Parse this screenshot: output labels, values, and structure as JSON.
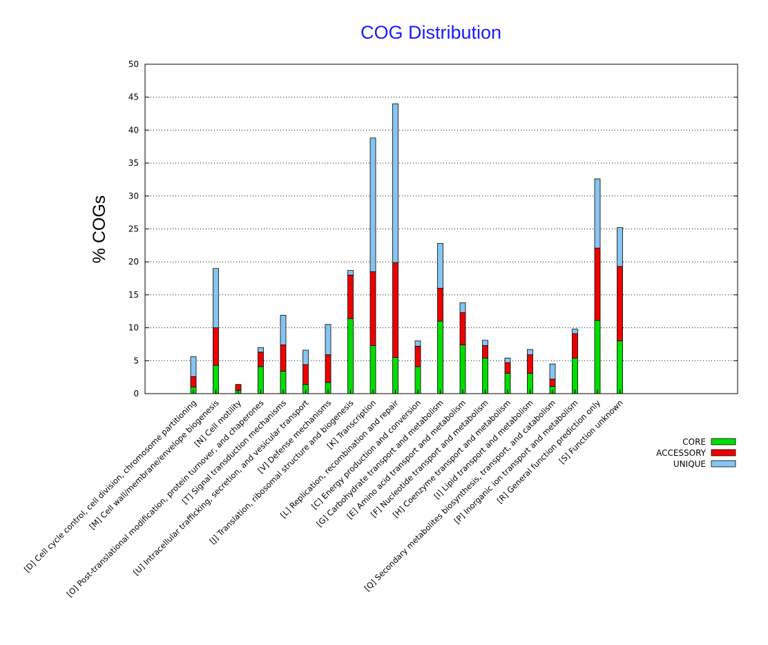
{
  "chart_data": {
    "type": "bar",
    "stacked": true,
    "title": "COG Distribution",
    "xlabel": "",
    "ylabel": "% COGs",
    "ylim": [
      0,
      50
    ],
    "yticks": [
      0,
      5,
      10,
      15,
      20,
      25,
      30,
      35,
      40,
      45,
      50
    ],
    "grid": true,
    "legend_position": "right",
    "categories": [
      "[D] Cell cycle control, cell division, chromosome partitioning",
      "[M] Cell wall/membrane/envelope biogenesis",
      "[N] Cell motility",
      "[O] Post-translational modification, protein turnover, and chaperones",
      "[T] Signal transduction mechanisms",
      "[U] Intracellular trafficking, secretion, and vesicular transport",
      "[V] Defense mechanisms",
      "[J] Translation, ribosomal structure and biogenesis",
      "[K] Transcription",
      "[L] Replication, recombination and repair",
      "[C] Energy production and conversion",
      "[G] Carbohydrate transport and metabolism",
      "[E] Amino acid transport and metabolism",
      "[F] Nucleotide transport and metabolism",
      "[H] Coenzyme transport and metabolism",
      "[I] Lipid transport and metabolism",
      "[Q] Secondary metabolites biosynthesis, transport, and catabolism",
      "[P] Inorganic ion transport and metabolism",
      "[R] General function prediction only",
      "[S] Function unknown"
    ],
    "series": [
      {
        "name": "CORE",
        "color": "#00dd00",
        "values": [
          1.0,
          4.3,
          0.5,
          4.1,
          3.4,
          1.4,
          1.7,
          11.4,
          7.3,
          5.5,
          4.1,
          11.0,
          7.4,
          5.4,
          3.1,
          3.1,
          1.1,
          5.4,
          11.1,
          8.0
        ]
      },
      {
        "name": "ACCESSORY",
        "color": "#ee0000",
        "values": [
          1.6,
          5.7,
          0.9,
          2.2,
          4.0,
          3.0,
          4.2,
          6.6,
          11.2,
          14.4,
          3.1,
          5.0,
          4.9,
          1.9,
          1.6,
          2.8,
          1.1,
          3.7,
          11.0,
          11.3
        ]
      },
      {
        "name": "UNIQUE",
        "color": "#87c5f0",
        "values": [
          3.0,
          9.0,
          0.0,
          0.7,
          4.5,
          2.2,
          4.6,
          0.7,
          20.3,
          24.1,
          0.8,
          6.8,
          1.5,
          0.8,
          0.7,
          0.8,
          2.3,
          0.7,
          10.5,
          5.9
        ]
      }
    ]
  }
}
